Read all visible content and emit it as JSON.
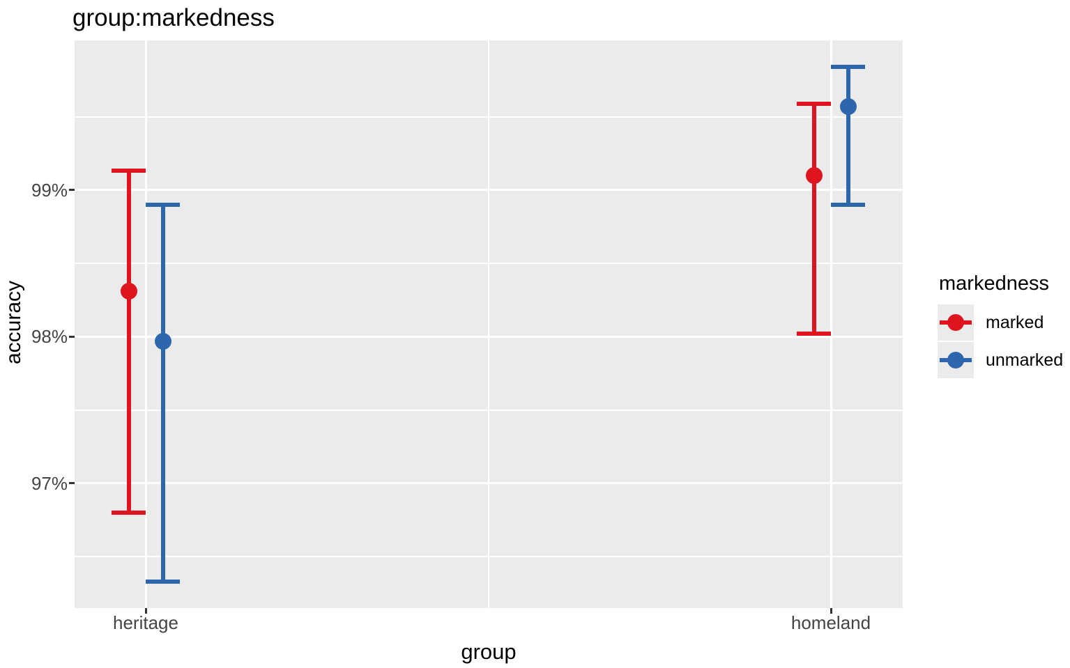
{
  "figure": {
    "title": "group:markedness"
  },
  "axes": {
    "y_title": "accuracy",
    "x_title": "group",
    "y_ticks": [
      {
        "label": "99%",
        "value": 99
      },
      {
        "label": "98%",
        "value": 98
      },
      {
        "label": "97%",
        "value": 97
      }
    ],
    "x_ticks": [
      {
        "label": "heritage"
      },
      {
        "label": "homeland"
      }
    ]
  },
  "legend": {
    "title": "markedness",
    "entries": [
      {
        "label": "marked",
        "color": "#DE141E"
      },
      {
        "label": "unmarked",
        "color": "#2D66AC"
      }
    ]
  },
  "colors": {
    "panel_background": "#EBEBEB",
    "gridline": "#FFFFFF",
    "marked": "#DE141E",
    "unmarked": "#2D66AC",
    "tick_mark": "#333333",
    "tick_text": "#444444",
    "title_text": "#000000"
  },
  "chart_data": {
    "type": "pointrange",
    "title": "group:markedness",
    "xlabel": "group",
    "ylabel": "accuracy",
    "categories": [
      "heritage",
      "homeland"
    ],
    "series": [
      {
        "name": "marked",
        "color": "#DE141E",
        "points": [
          {
            "x": "heritage",
            "estimate": 98.31,
            "ci_low": 96.8,
            "ci_high": 99.13
          },
          {
            "x": "homeland",
            "estimate": 99.1,
            "ci_low": 98.02,
            "ci_high": 99.59
          }
        ]
      },
      {
        "name": "unmarked",
        "color": "#2D66AC",
        "points": [
          {
            "x": "heritage",
            "estimate": 97.97,
            "ci_low": 96.33,
            "ci_high": 98.9
          },
          {
            "x": "homeland",
            "estimate": 99.57,
            "ci_low": 98.9,
            "ci_high": 99.84
          }
        ]
      }
    ],
    "y_unit": "percent",
    "ylim": [
      96.15,
      100.02
    ],
    "y_breaks_major": [
      97,
      98,
      99
    ],
    "y_breaks_minor": [
      96.5,
      97.5,
      98.5,
      99.5
    ],
    "grid": true,
    "legend_position": "right",
    "dodge": true
  }
}
